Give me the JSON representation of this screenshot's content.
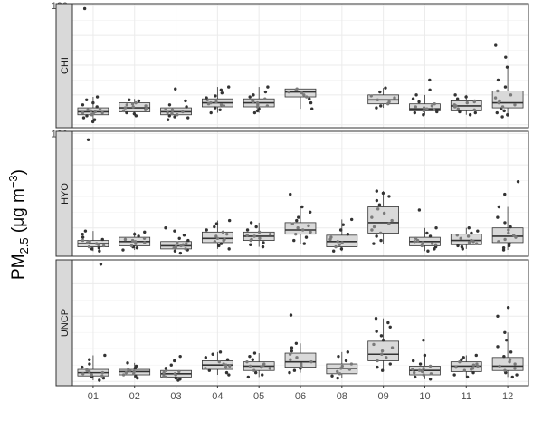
{
  "chart_data": {
    "type": "box",
    "ylabel": {
      "main": "PM",
      "sub": "2.5",
      "unit_open": " (μg m",
      "sup": "−3",
      "unit_close": ")"
    },
    "categories": [
      "01",
      "02",
      "03",
      "04",
      "05",
      "06",
      "08",
      "09",
      "10",
      "11",
      "12"
    ],
    "grid": true,
    "colors": {
      "box_fill": "#d9d9d9",
      "box_stroke": "#333333",
      "point": "#333333",
      "strip_fill": "#d9d9d9",
      "panel_border": "#333333",
      "grid": "#ebebeb"
    },
    "panels": [
      {
        "label": "CHI",
        "ylim": [
          -3,
          122
        ],
        "yticks": [
          0,
          30,
          60,
          90,
          120
        ],
        "boxes": [
          {
            "x": "01",
            "q1": 10,
            "median": 13,
            "q3": 17,
            "whisker_low": 3,
            "whisker_high": 28,
            "points": [
              3,
              5,
              7,
              9,
              10,
              11,
              12,
              12,
              13,
              14,
              15,
              16,
              18,
              20,
              22,
              25,
              28,
              117
            ]
          },
          {
            "x": "02",
            "q1": 13,
            "median": 17,
            "q3": 22,
            "whisker_low": 9,
            "whisker_high": 26,
            "points": [
              9,
              11,
              12,
              14,
              15,
              16,
              17,
              18,
              19,
              20,
              21,
              22,
              24,
              25
            ]
          },
          {
            "x": "03",
            "q1": 10,
            "median": 13,
            "q3": 17,
            "whisker_low": 5,
            "whisker_high": 36,
            "points": [
              5,
              7,
              8,
              9,
              10,
              11,
              12,
              13,
              14,
              15,
              16,
              18,
              20,
              24,
              36
            ]
          },
          {
            "x": "04",
            "q1": 18,
            "median": 22,
            "q3": 26,
            "whisker_low": 12,
            "whisker_high": 38,
            "points": [
              12,
              15,
              17,
              19,
              20,
              21,
              22,
              23,
              25,
              27,
              29,
              32,
              35,
              38
            ]
          },
          {
            "x": "05",
            "q1": 18,
            "median": 22,
            "q3": 26,
            "whisker_low": 12,
            "whisker_high": 38,
            "points": [
              12,
              14,
              16,
              18,
              19,
              20,
              22,
              23,
              24,
              26,
              28,
              30,
              33,
              38
            ]
          },
          {
            "x": "06",
            "q1": 28,
            "median": 33,
            "q3": 36,
            "whisker_low": 16,
            "whisker_high": 36,
            "points": [
              16,
              22,
              26,
              28,
              30,
              32,
              33,
              35,
              36
            ]
          },
          {
            "x": "09",
            "q1": 21,
            "median": 25,
            "q3": 30,
            "whisker_low": 17,
            "whisker_high": 37,
            "points": [
              17,
              19,
              21,
              23,
              25,
              27,
              29,
              33,
              37
            ]
          },
          {
            "x": "10",
            "q1": 14,
            "median": 16,
            "q3": 21,
            "whisker_low": 10,
            "whisker_high": 30,
            "points": [
              10,
              12,
              13,
              14,
              15,
              16,
              17,
              18,
              19,
              21,
              23,
              26,
              30,
              35,
              45
            ]
          },
          {
            "x": "11",
            "q1": 14,
            "median": 19,
            "q3": 24,
            "whisker_low": 10,
            "whisker_high": 30,
            "points": [
              10,
              12,
              13,
              15,
              16,
              18,
              19,
              20,
              22,
              23,
              24,
              26,
              28,
              30
            ]
          },
          {
            "x": "12",
            "q1": 17,
            "median": 22,
            "q3": 34,
            "whisker_low": 8,
            "whisker_high": 58,
            "points": [
              8,
              10,
              12,
              14,
              16,
              18,
              20,
              22,
              24,
              27,
              30,
              34,
              38,
              45,
              58,
              68,
              80
            ]
          }
        ]
      },
      {
        "label": "HYO",
        "ylim": [
          3,
          122
        ],
        "yticks": [
          30,
          60,
          90,
          120
        ],
        "boxes": [
          {
            "x": "01",
            "q1": 12,
            "median": 15,
            "q3": 18,
            "whisker_low": 8,
            "whisker_high": 27,
            "points": [
              8,
              10,
              11,
              12,
              13,
              14,
              15,
              16,
              17,
              18,
              19,
              21,
              24,
              27,
              114
            ]
          },
          {
            "x": "02",
            "q1": 13,
            "median": 17,
            "q3": 21,
            "whisker_low": 9,
            "whisker_high": 26,
            "points": [
              9,
              11,
              12,
              13,
              15,
              16,
              17,
              18,
              19,
              20,
              22,
              24,
              26
            ]
          },
          {
            "x": "03",
            "q1": 10,
            "median": 13,
            "q3": 17,
            "whisker_low": 6,
            "whisker_high": 30,
            "points": [
              6,
              8,
              9,
              10,
              11,
              12,
              13,
              14,
              15,
              16,
              18,
              20,
              23,
              27,
              30
            ]
          },
          {
            "x": "04",
            "q1": 16,
            "median": 20,
            "q3": 26,
            "whisker_low": 10,
            "whisker_high": 37,
            "points": [
              10,
              13,
              15,
              17,
              18,
              19,
              20,
              22,
              24,
              26,
              28,
              31,
              34,
              37
            ]
          },
          {
            "x": "05",
            "q1": 18,
            "median": 22,
            "q3": 26,
            "whisker_low": 12,
            "whisker_high": 35,
            "points": [
              12,
              14,
              16,
              18,
              19,
              20,
              22,
              23,
              24,
              26,
              28,
              31,
              35
            ]
          },
          {
            "x": "06",
            "q1": 24,
            "median": 28,
            "q3": 35,
            "whisker_low": 15,
            "whisker_high": 50,
            "points": [
              15,
              18,
              21,
              24,
              26,
              28,
              30,
              32,
              34,
              37,
              40,
              45,
              50,
              62
            ]
          },
          {
            "x": "08",
            "q1": 12,
            "median": 17,
            "q3": 23,
            "whisker_low": 8,
            "whisker_high": 38,
            "points": [
              8,
              10,
              12,
              14,
              16,
              17,
              19,
              21,
              24,
              28,
              33,
              38
            ]
          },
          {
            "x": "09",
            "q1": 25,
            "median": 35,
            "q3": 50,
            "whisker_low": 15,
            "whisker_high": 65,
            "points": [
              15,
              18,
              22,
              25,
              28,
              31,
              34,
              37,
              40,
              44,
              48,
              52,
              56,
              60,
              63,
              65
            ]
          },
          {
            "x": "10",
            "q1": 13,
            "median": 17,
            "q3": 21,
            "whisker_low": 8,
            "whisker_high": 30,
            "points": [
              8,
              10,
              12,
              13,
              14,
              15,
              16,
              17,
              18,
              20,
              22,
              25,
              30,
              47
            ]
          },
          {
            "x": "11",
            "q1": 14,
            "median": 18,
            "q3": 24,
            "whisker_low": 10,
            "whisker_high": 30,
            "points": [
              10,
              12,
              13,
              15,
              16,
              17,
              18,
              20,
              22,
              23,
              25,
              27,
              30
            ]
          },
          {
            "x": "12",
            "q1": 16,
            "median": 22,
            "q3": 30,
            "whisker_low": 9,
            "whisker_high": 50,
            "points": [
              9,
              11,
              13,
              15,
              17,
              19,
              21,
              23,
              25,
              28,
              31,
              35,
              40,
              50,
              62,
              74
            ]
          }
        ]
      },
      {
        "label": "UNCP",
        "ylim": [
          -4,
          112
        ],
        "yticks": [
          0,
          30,
          60,
          90
        ],
        "boxes": [
          {
            "x": "01",
            "q1": 5,
            "median": 8,
            "q3": 11,
            "whisker_low": 1,
            "whisker_high": 24,
            "points": [
              1,
              3,
              4,
              5,
              6,
              7,
              8,
              9,
              10,
              11,
              13,
              16,
              20,
              24,
              108
            ]
          },
          {
            "x": "02",
            "q1": 6,
            "median": 9,
            "q3": 11,
            "whisker_low": 3,
            "whisker_high": 17,
            "points": [
              3,
              5,
              6,
              7,
              8,
              9,
              10,
              11,
              12,
              14,
              17
            ]
          },
          {
            "x": "03",
            "q1": 4,
            "median": 7,
            "q3": 10,
            "whisker_low": 1,
            "whisker_high": 23,
            "points": [
              1,
              2,
              3,
              4,
              5,
              6,
              7,
              8,
              9,
              10,
              12,
              15,
              19,
              23
            ]
          },
          {
            "x": "04",
            "q1": 11,
            "median": 15,
            "q3": 19,
            "whisker_low": 6,
            "whisker_high": 27,
            "points": [
              6,
              8,
              10,
              12,
              13,
              14,
              15,
              16,
              18,
              20,
              22,
              25,
              27
            ]
          },
          {
            "x": "05",
            "q1": 10,
            "median": 14,
            "q3": 18,
            "whisker_low": 4,
            "whisker_high": 26,
            "points": [
              4,
              6,
              8,
              10,
              12,
              13,
              14,
              15,
              16,
              18,
              20,
              23,
              26
            ]
          },
          {
            "x": "06",
            "q1": 13,
            "median": 18,
            "q3": 26,
            "whisker_low": 8,
            "whisker_high": 35,
            "points": [
              8,
              10,
              12,
              14,
              16,
              18,
              20,
              22,
              25,
              28,
              31,
              35,
              61
            ]
          },
          {
            "x": "08",
            "q1": 7,
            "median": 12,
            "q3": 16,
            "whisker_low": 3,
            "whisker_high": 27,
            "points": [
              3,
              5,
              7,
              9,
              11,
              12,
              14,
              16,
              19,
              23,
              27
            ]
          },
          {
            "x": "09",
            "q1": 19,
            "median": 25,
            "q3": 37,
            "whisker_low": 10,
            "whisker_high": 58,
            "points": [
              10,
              13,
              16,
              19,
              22,
              25,
              28,
              31,
              34,
              38,
              42,
              46,
              50,
              54,
              58
            ]
          },
          {
            "x": "10",
            "q1": 6,
            "median": 10,
            "q3": 14,
            "whisker_low": 2,
            "whisker_high": 24,
            "points": [
              2,
              4,
              6,
              7,
              8,
              9,
              10,
              11,
              12,
              14,
              16,
              19,
              24,
              38
            ]
          },
          {
            "x": "11",
            "q1": 9,
            "median": 14,
            "q3": 18,
            "whisker_low": 4,
            "whisker_high": 24,
            "points": [
              4,
              6,
              8,
              10,
              11,
              12,
              13,
              14,
              15,
              16,
              18,
              20,
              22,
              24
            ]
          },
          {
            "x": "12",
            "q1": 10,
            "median": 14,
            "q3": 22,
            "whisker_low": 4,
            "whisker_high": 45,
            "points": [
              4,
              6,
              8,
              10,
              12,
              14,
              16,
              18,
              20,
              23,
              27,
              32,
              38,
              45,
              60,
              68
            ]
          }
        ]
      }
    ]
  }
}
